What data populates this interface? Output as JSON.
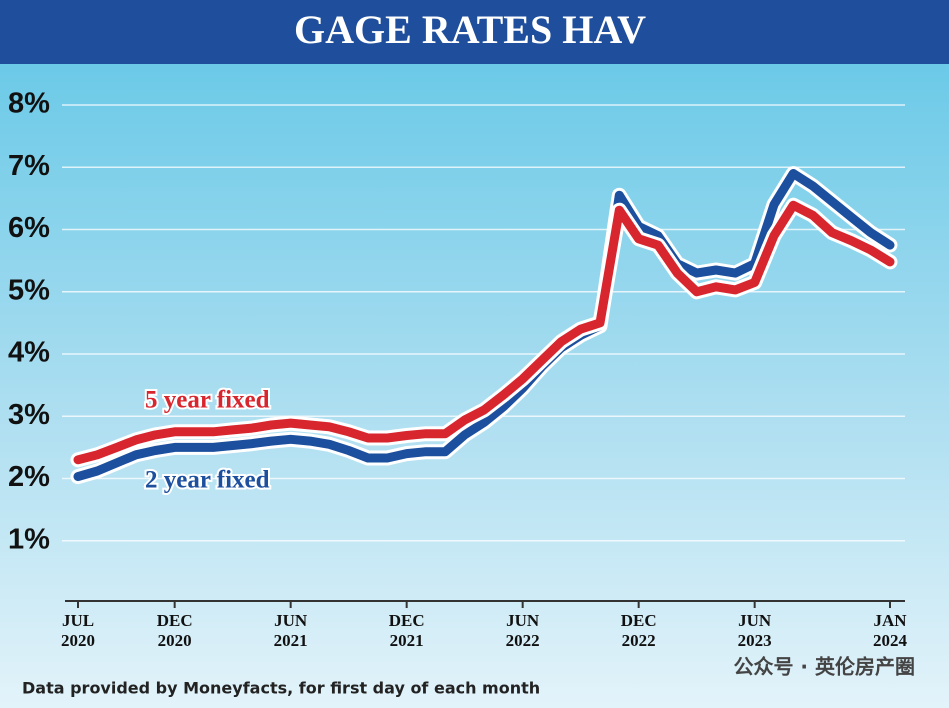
{
  "chart_data": {
    "type": "line",
    "title": "GAGE RATES HAV",
    "footnote": "Data provided by Moneyfacts, for first day of each month",
    "watermark": "公众号 · 英伦房产圈",
    "categories": [
      "JUL 2020",
      null,
      null,
      null,
      null,
      "DEC 2020",
      null,
      null,
      null,
      null,
      null,
      "JUN 2021",
      null,
      null,
      null,
      null,
      null,
      "DEC 2021",
      null,
      null,
      null,
      null,
      null,
      "JUN 2022",
      null,
      null,
      null,
      null,
      null,
      "DEC 2022",
      null,
      null,
      null,
      null,
      null,
      "JUN 2023",
      null,
      null,
      null,
      null,
      null,
      null,
      "JAN 2024"
    ],
    "series": [
      {
        "name": "2 year fixed",
        "color": "#1c4f9e",
        "values": [
          2.03,
          2.12,
          2.25,
          2.38,
          2.45,
          2.5,
          2.5,
          2.5,
          2.53,
          2.56,
          2.6,
          2.63,
          2.6,
          2.55,
          2.45,
          2.33,
          2.33,
          2.4,
          2.43,
          2.43,
          2.7,
          2.9,
          3.15,
          3.45,
          3.8,
          4.1,
          4.3,
          4.45,
          6.55,
          6.05,
          5.9,
          5.45,
          5.3,
          5.35,
          5.3,
          5.45,
          6.4,
          6.9,
          6.7,
          6.45,
          6.2,
          5.95,
          5.75
        ]
      },
      {
        "name": "5 year fixed",
        "color": "#d8262f",
        "values": [
          2.3,
          2.38,
          2.5,
          2.62,
          2.7,
          2.75,
          2.75,
          2.75,
          2.78,
          2.81,
          2.86,
          2.89,
          2.86,
          2.83,
          2.75,
          2.65,
          2.65,
          2.69,
          2.72,
          2.72,
          2.94,
          3.1,
          3.34,
          3.6,
          3.9,
          4.2,
          4.4,
          4.5,
          6.31,
          5.85,
          5.75,
          5.3,
          5.0,
          5.08,
          5.03,
          5.15,
          5.9,
          6.39,
          6.23,
          5.95,
          5.82,
          5.67,
          5.48
        ]
      }
    ],
    "ylim": [
      0,
      8
    ],
    "yticks": [
      {
        "value": 1,
        "label": "1%"
      },
      {
        "value": 2,
        "label": "2%"
      },
      {
        "value": 3,
        "label": "3%"
      },
      {
        "value": 4,
        "label": "4%"
      },
      {
        "value": 5,
        "label": "5%"
      },
      {
        "value": 6,
        "label": "6%"
      },
      {
        "value": 7,
        "label": "7%"
      },
      {
        "value": 8,
        "label": "8%"
      }
    ],
    "grid": true
  }
}
